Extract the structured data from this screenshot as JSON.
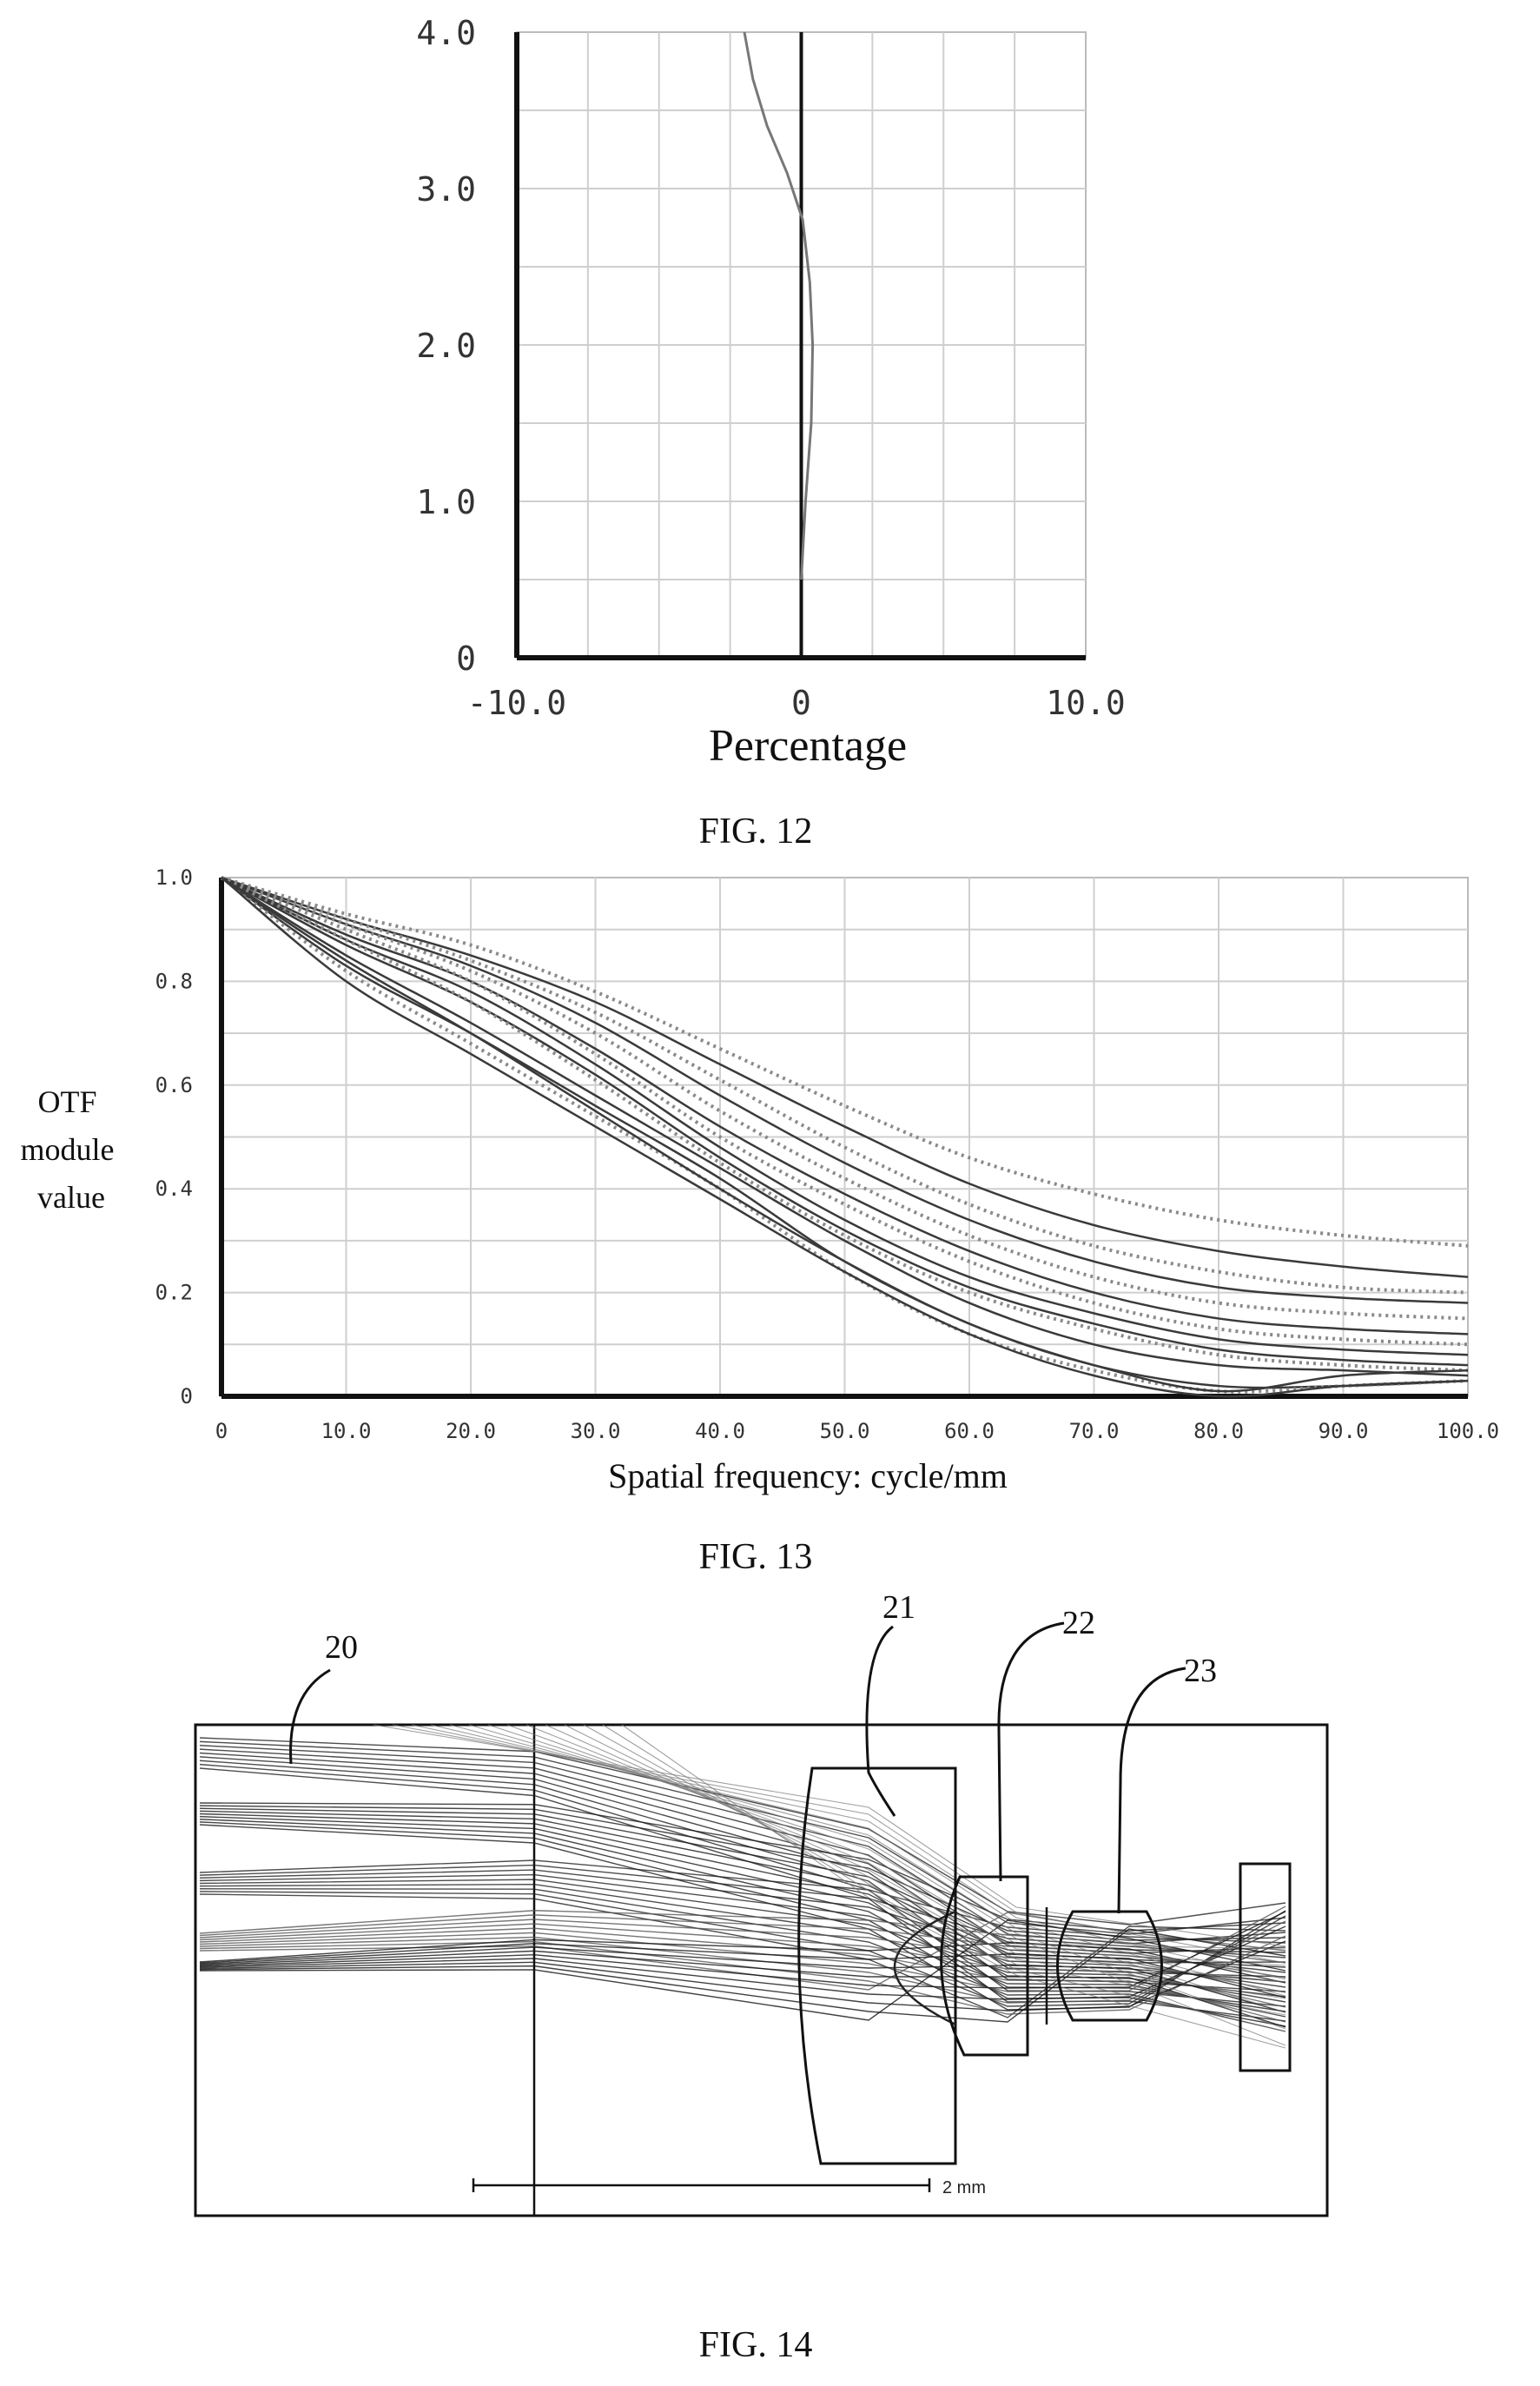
{
  "fig12": {
    "caption": "FIG. 12",
    "xlabel": "Percentage",
    "xticks": [
      "-10.0",
      "0",
      "10.0"
    ],
    "yticks": [
      "0",
      "1.0",
      "2.0",
      "3.0",
      "4.0"
    ],
    "chart_data": {
      "type": "line",
      "xlim": [
        -10,
        10
      ],
      "ylim": [
        0,
        4
      ],
      "grid": true,
      "series": [
        {
          "x": [
            0,
            0.15,
            0.35,
            0.4,
            0.3,
            0.05,
            -0.5,
            -1.2,
            -1.7,
            -2.0
          ],
          "y": [
            0.5,
            1.0,
            1.5,
            2.0,
            2.4,
            2.8,
            3.1,
            3.4,
            3.7,
            4.0
          ]
        }
      ]
    }
  },
  "fig13": {
    "caption": "FIG. 13",
    "ylabel_lines": [
      "OTF",
      "module",
      "value"
    ],
    "xlabel": "Spatial frequency: cycle/mm",
    "xticks": [
      "0",
      "10.0",
      "20.0",
      "30.0",
      "40.0",
      "50.0",
      "60.0",
      "70.0",
      "80.0",
      "90.0",
      "100.0"
    ],
    "yticks": [
      "0",
      "0.2",
      "0.4",
      "0.6",
      "0.8",
      "1.0"
    ],
    "chart_data": {
      "type": "line",
      "xlim": [
        0,
        100
      ],
      "ylim": [
        0,
        1
      ],
      "grid": true,
      "series": [
        {
          "style": "dotted",
          "x": [
            0,
            10,
            20,
            30,
            40,
            50,
            60,
            70,
            80,
            90,
            100
          ],
          "y": [
            1.0,
            0.93,
            0.87,
            0.78,
            0.67,
            0.56,
            0.46,
            0.39,
            0.34,
            0.31,
            0.29
          ]
        },
        {
          "style": "solid",
          "x": [
            0,
            10,
            20,
            30,
            40,
            50,
            60,
            70,
            80,
            90,
            100
          ],
          "y": [
            1.0,
            0.92,
            0.85,
            0.76,
            0.64,
            0.52,
            0.41,
            0.33,
            0.28,
            0.25,
            0.23
          ]
        },
        {
          "style": "dotted",
          "x": [
            0,
            10,
            20,
            30,
            40,
            50,
            60,
            70,
            80,
            90,
            100
          ],
          "y": [
            1.0,
            0.92,
            0.84,
            0.74,
            0.61,
            0.48,
            0.37,
            0.29,
            0.24,
            0.21,
            0.2
          ]
        },
        {
          "style": "solid",
          "x": [
            0,
            10,
            20,
            30,
            40,
            50,
            60,
            70,
            80,
            90,
            100
          ],
          "y": [
            1.0,
            0.91,
            0.83,
            0.72,
            0.58,
            0.45,
            0.34,
            0.26,
            0.21,
            0.19,
            0.18
          ]
        },
        {
          "style": "dotted",
          "x": [
            0,
            10,
            20,
            30,
            40,
            50,
            60,
            70,
            80,
            90,
            100
          ],
          "y": [
            1.0,
            0.91,
            0.82,
            0.7,
            0.55,
            0.42,
            0.31,
            0.23,
            0.18,
            0.16,
            0.15
          ]
        },
        {
          "style": "solid",
          "x": [
            0,
            10,
            20,
            30,
            40,
            50,
            60,
            70,
            80,
            90,
            100
          ],
          "y": [
            1.0,
            0.89,
            0.8,
            0.67,
            0.52,
            0.39,
            0.28,
            0.2,
            0.15,
            0.13,
            0.12
          ]
        },
        {
          "style": "dotted",
          "x": [
            0,
            10,
            20,
            30,
            40,
            50,
            60,
            70,
            80,
            90,
            100
          ],
          "y": [
            1.0,
            0.9,
            0.8,
            0.66,
            0.5,
            0.37,
            0.26,
            0.18,
            0.13,
            0.11,
            0.1
          ]
        },
        {
          "style": "solid",
          "x": [
            0,
            10,
            20,
            30,
            40,
            50,
            60,
            70,
            80,
            90,
            100
          ],
          "y": [
            1.0,
            0.88,
            0.78,
            0.64,
            0.48,
            0.34,
            0.23,
            0.16,
            0.11,
            0.09,
            0.08
          ]
        },
        {
          "style": "solid",
          "x": [
            0,
            10,
            20,
            30,
            40,
            50,
            60,
            70,
            80,
            90,
            100
          ],
          "y": [
            1.0,
            0.87,
            0.76,
            0.62,
            0.46,
            0.32,
            0.21,
            0.14,
            0.09,
            0.07,
            0.06
          ]
        },
        {
          "style": "dotted",
          "x": [
            0,
            10,
            20,
            30,
            40,
            50,
            60,
            70,
            80,
            90,
            100
          ],
          "y": [
            1.0,
            0.88,
            0.76,
            0.61,
            0.45,
            0.31,
            0.2,
            0.13,
            0.08,
            0.06,
            0.05
          ]
        },
        {
          "style": "solid",
          "x": [
            0,
            10,
            20,
            30,
            40,
            50,
            60,
            70,
            80,
            90,
            100
          ],
          "y": [
            1.0,
            0.85,
            0.72,
            0.58,
            0.44,
            0.3,
            0.18,
            0.1,
            0.06,
            0.05,
            0.04
          ]
        },
        {
          "style": "solid",
          "x": [
            0,
            10,
            20,
            30,
            40,
            50,
            60,
            70,
            80,
            90,
            100
          ],
          "y": [
            1.0,
            0.83,
            0.7,
            0.56,
            0.42,
            0.26,
            0.14,
            0.06,
            0.02,
            0.02,
            0.03
          ]
        },
        {
          "style": "dotted",
          "x": [
            0,
            10,
            20,
            30,
            40,
            50,
            60,
            70,
            80,
            90,
            100
          ],
          "y": [
            1.0,
            0.82,
            0.68,
            0.54,
            0.4,
            0.24,
            0.12,
            0.05,
            0.01,
            0.02,
            0.03
          ]
        },
        {
          "style": "solid",
          "x": [
            0,
            10,
            20,
            30,
            40,
            50,
            60,
            70,
            80,
            90,
            100
          ],
          "y": [
            1.0,
            0.84,
            0.7,
            0.55,
            0.4,
            0.26,
            0.14,
            0.06,
            0.01,
            0.04,
            0.05
          ]
        },
        {
          "style": "solid",
          "x": [
            0,
            10,
            20,
            30,
            40,
            50,
            60,
            70,
            80,
            90,
            100
          ],
          "y": [
            1.0,
            0.8,
            0.66,
            0.52,
            0.38,
            0.24,
            0.12,
            0.04,
            0.0,
            0.02,
            0.03
          ]
        }
      ]
    }
  },
  "fig14": {
    "caption": "FIG. 14",
    "labels": [
      "20",
      "21",
      "22",
      "23"
    ],
    "scale_label": "2 mm"
  }
}
